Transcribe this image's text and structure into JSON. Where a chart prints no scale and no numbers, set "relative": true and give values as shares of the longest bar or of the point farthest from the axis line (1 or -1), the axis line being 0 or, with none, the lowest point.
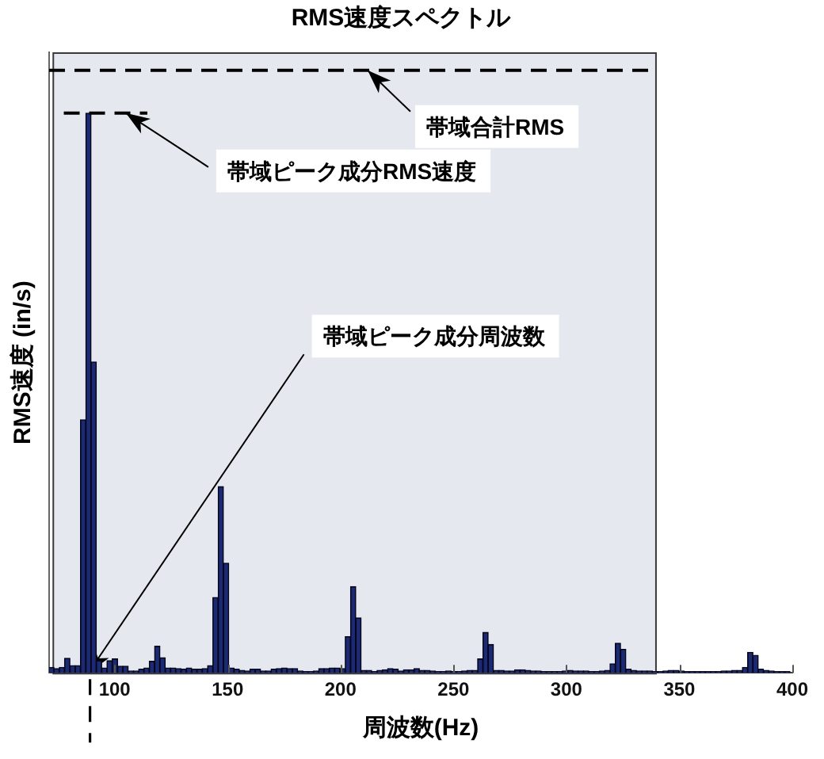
{
  "chart_data": {
    "type": "bar",
    "title": "RMS速度スペクトル",
    "xlabel": "周波数(Hz)",
    "ylabel": "RMS速度 (in/s)",
    "relative": true,
    "xlim": [
      71,
      400
    ],
    "xticks": [
      100,
      150,
      200,
      250,
      300,
      350,
      400
    ],
    "bands": [
      {
        "axis": "x",
        "from": 72.5,
        "to": 340,
        "color": "#e5e8ee"
      }
    ],
    "series": [
      {
        "color": "#1c2a73",
        "x": [
          72.0,
          74.3,
          76.7,
          79.0,
          81.4,
          83.7,
          86.1,
          88.4,
          90.7,
          93.1,
          95.4,
          97.8,
          100.1,
          102.5,
          104.8,
          107.2,
          109.5,
          111.8,
          114.2,
          116.5,
          118.9,
          121.2,
          123.6,
          125.9,
          128.2,
          130.6,
          132.9,
          135.3,
          137.6,
          140.0,
          142.3,
          144.7,
          147.0,
          149.3,
          151.7,
          154.0,
          156.4,
          158.7,
          161.1,
          163.4,
          165.8,
          168.1,
          170.4,
          172.8,
          175.1,
          177.5,
          179.8,
          182.2,
          184.5,
          186.8,
          189.2,
          191.5,
          193.9,
          196.2,
          198.6,
          200.9,
          203.3,
          205.6,
          207.9,
          210.3,
          212.6,
          215.0,
          217.3,
          219.7,
          222.0,
          224.4,
          226.7,
          229.0,
          231.4,
          233.7,
          236.1,
          238.4,
          240.8,
          243.1,
          245.4,
          247.8,
          250.1,
          252.5,
          254.8,
          257.2,
          259.5,
          261.9,
          264.2,
          266.5,
          268.9,
          271.2,
          273.6,
          275.9,
          278.3,
          280.6,
          283.0,
          285.3,
          287.6,
          290.0,
          292.3,
          294.7,
          297.0,
          299.4,
          301.7,
          304.0,
          306.4,
          308.7,
          311.1,
          313.4,
          315.8,
          318.1,
          320.5,
          322.8,
          325.1,
          327.5,
          329.8,
          332.2,
          334.5,
          336.9,
          339.2,
          341.6,
          343.9,
          346.2,
          348.6,
          350.9,
          353.3,
          355.6,
          358.0,
          360.3,
          362.6,
          365.0,
          367.3,
          369.7,
          372.0,
          374.4,
          376.7,
          379.1,
          381.4,
          383.7,
          386.1,
          388.4,
          390.8,
          393.1,
          395.5,
          397.8
        ],
        "values": [
          0.009,
          0.007,
          0.009,
          0.024,
          0.012,
          0.012,
          0.42,
          0.929,
          0.516,
          0.02,
          0.008,
          0.02,
          0.023,
          0.011,
          0.011,
          0.003,
          0.003,
          0.006,
          0.008,
          0.019,
          0.044,
          0.025,
          0.008,
          0.008,
          0.007,
          0.006,
          0.008,
          0.006,
          0.006,
          0.007,
          0.012,
          0.125,
          0.309,
          0.182,
          0.008,
          0.006,
          0.004,
          0.003,
          0.006,
          0.006,
          0.003,
          0.003,
          0.006,
          0.007,
          0.008,
          0.007,
          0.007,
          0.003,
          0.002,
          0.002,
          0.003,
          0.007,
          0.007,
          0.008,
          0.008,
          0.007,
          0.06,
          0.143,
          0.091,
          0.004,
          0.004,
          0.002,
          0.004,
          0.005,
          0.007,
          0.006,
          0.003,
          0.005,
          0.005,
          0.007,
          0.004,
          0.004,
          0.003,
          0.002,
          0.002,
          0.003,
          0.002,
          0.002,
          0.003,
          0.004,
          0.004,
          0.023,
          0.067,
          0.047,
          0.004,
          0.004,
          0.003,
          0.003,
          0.005,
          0.005,
          0.004,
          0.003,
          0.003,
          0.002,
          0.002,
          0.002,
          0.002,
          0.003,
          0.004,
          0.003,
          0.003,
          0.003,
          0.002,
          0.002,
          0.003,
          0.004,
          0.015,
          0.049,
          0.039,
          0.006,
          0.004,
          0.003,
          0.003,
          0.003,
          0.002,
          0.002,
          0.003,
          0.004,
          0.004,
          0.003,
          0.002,
          0.002,
          0.002,
          0.002,
          0.002,
          0.002,
          0.002,
          0.003,
          0.003,
          0.004,
          0.004,
          0.009,
          0.034,
          0.029,
          0.006,
          0.004,
          0.003,
          0.002,
          0.002,
          0.002
        ]
      },
      {
        "type": "line",
        "color": "#000000",
        "line_style": "dashed",
        "x": [
          71,
          340
        ],
        "values": [
          1,
          1
        ]
      },
      {
        "type": "line",
        "color": "#000000",
        "line_style": "dashed",
        "x": [
          77.5,
          114.5
        ],
        "values": [
          0.929,
          0.929
        ]
      }
    ],
    "annotations": [
      {
        "text": "帯域合計RMS",
        "x": 212,
        "y": 1
      },
      {
        "text": "帯域ピーク成分RMS速度",
        "x": 105,
        "y": 0.929
      },
      {
        "text": "帯域ピーク成分周波数",
        "x": 88.4,
        "y": 0
      }
    ]
  }
}
